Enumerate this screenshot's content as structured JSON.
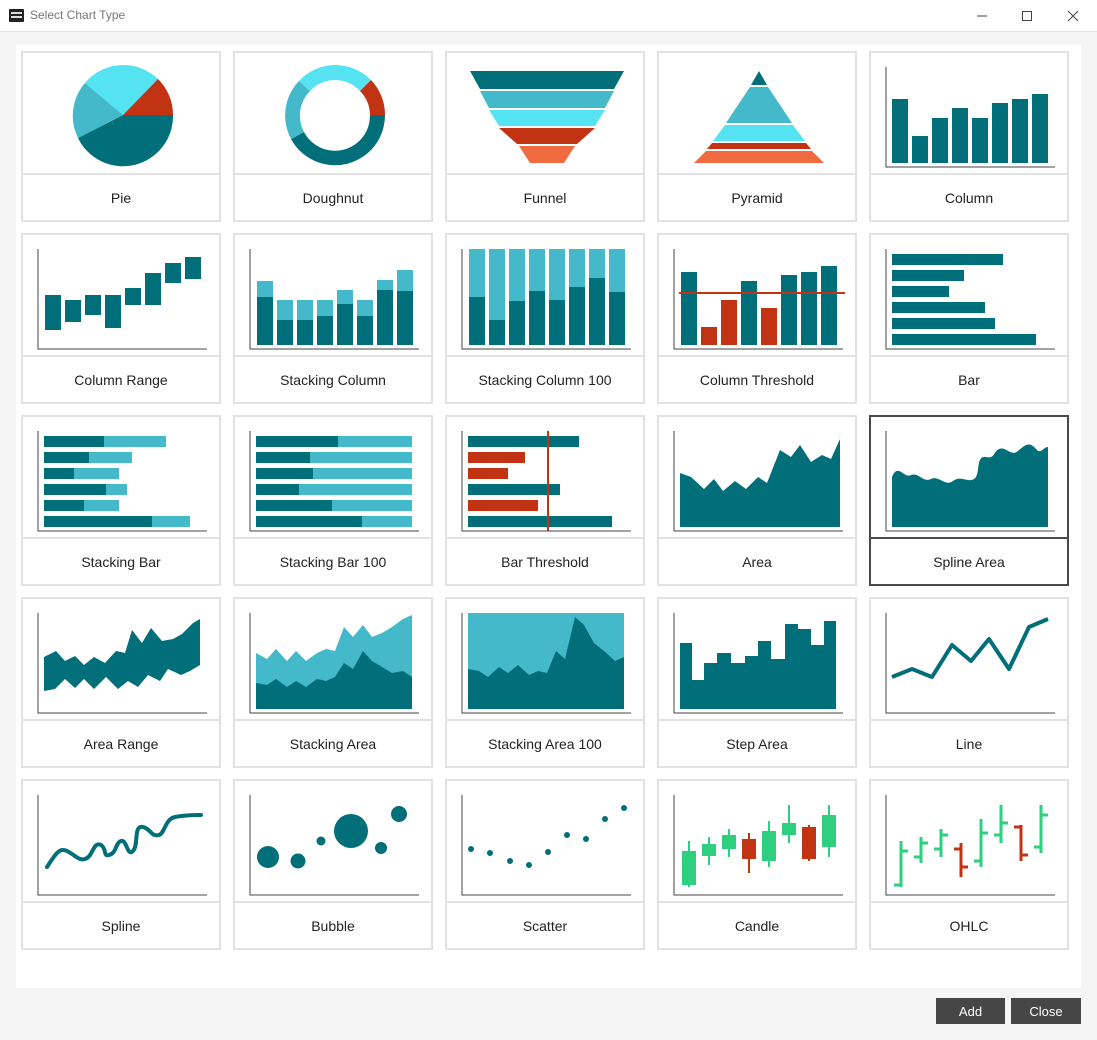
{
  "window": {
    "title": "Select Chart Type"
  },
  "colors": {
    "dark": "#006f7a",
    "mid": "#43b9c9",
    "light": "#55e3f2",
    "red": "#c23314",
    "orange": "#f06c40",
    "green": "#2ecf7e",
    "selected_border": "#4a4a4a"
  },
  "cards": [
    {
      "label": "Pie",
      "icon": "pie-chart-icon"
    },
    {
      "label": "Doughnut",
      "icon": "doughnut-chart-icon"
    },
    {
      "label": "Funnel",
      "icon": "funnel-chart-icon"
    },
    {
      "label": "Pyramid",
      "icon": "pyramid-chart-icon"
    },
    {
      "label": "Column",
      "icon": "column-chart-icon"
    },
    {
      "label": "Column Range",
      "icon": "column-range-chart-icon"
    },
    {
      "label": "Stacking Column",
      "icon": "stacking-column-chart-icon"
    },
    {
      "label": "Stacking Column 100",
      "icon": "stacking-column-100-chart-icon"
    },
    {
      "label": "Column Threshold",
      "icon": "column-threshold-chart-icon"
    },
    {
      "label": "Bar",
      "icon": "bar-chart-icon"
    },
    {
      "label": "Stacking Bar",
      "icon": "stacking-bar-chart-icon"
    },
    {
      "label": "Stacking Bar 100",
      "icon": "stacking-bar-100-chart-icon"
    },
    {
      "label": "Bar Threshold",
      "icon": "bar-threshold-chart-icon"
    },
    {
      "label": "Area",
      "icon": "area-chart-icon"
    },
    {
      "label": "Spline Area",
      "icon": "spline-area-chart-icon",
      "selected": true
    },
    {
      "label": "Area Range",
      "icon": "area-range-chart-icon"
    },
    {
      "label": "Stacking Area",
      "icon": "stacking-area-chart-icon"
    },
    {
      "label": "Stacking Area 100",
      "icon": "stacking-area-100-chart-icon"
    },
    {
      "label": "Step Area",
      "icon": "step-area-chart-icon"
    },
    {
      "label": "Line",
      "icon": "line-chart-icon"
    },
    {
      "label": "Spline",
      "icon": "spline-chart-icon"
    },
    {
      "label": "Bubble",
      "icon": "bubble-chart-icon"
    },
    {
      "label": "Scatter",
      "icon": "scatter-chart-icon"
    },
    {
      "label": "Candle",
      "icon": "candle-chart-icon"
    },
    {
      "label": "OHLC",
      "icon": "ohlc-chart-icon"
    }
  ],
  "footer": {
    "add_label": "Add",
    "close_label": "Close"
  }
}
